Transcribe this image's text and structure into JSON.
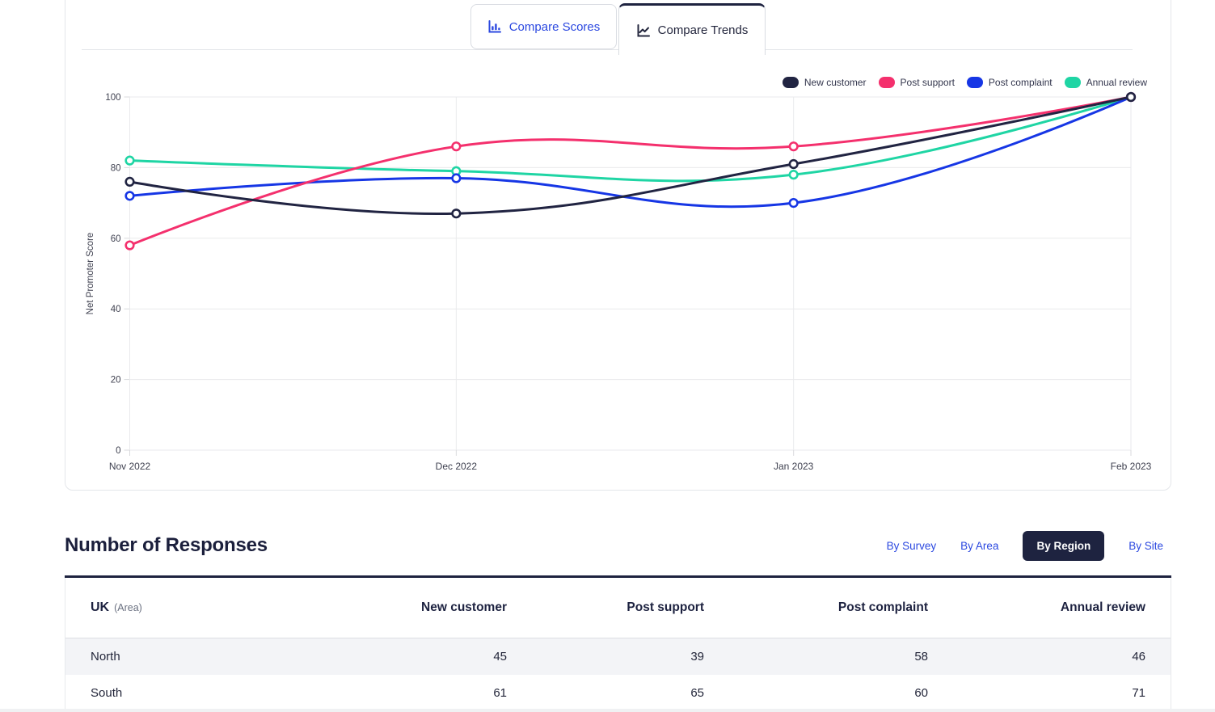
{
  "tabs": [
    {
      "label": "Compare Scores",
      "icon": "bar-chart-icon",
      "active": false
    },
    {
      "label": "Compare Trends",
      "icon": "line-chart-icon",
      "active": true
    }
  ],
  "chart_data": {
    "type": "line",
    "x": [
      "Nov 2022",
      "Dec 2022",
      "Jan 2023",
      "Feb 2023"
    ],
    "x_day_offsets": [
      0,
      30,
      61,
      92
    ],
    "ylabel": "Net Promoter Score",
    "ylim": [
      0,
      100
    ],
    "y_ticks": [
      0,
      20,
      40,
      60,
      80,
      100
    ],
    "grid": true,
    "legend_position": "top-right",
    "curve": "bezier-tension-0.4",
    "series": [
      {
        "name": "New customer",
        "color": "#212442",
        "values": [
          76,
          67,
          81,
          100
        ]
      },
      {
        "name": "Post support",
        "color": "#f4306d",
        "values": [
          58,
          86,
          86,
          100
        ]
      },
      {
        "name": "Post complaint",
        "color": "#1636e5",
        "values": [
          72,
          77,
          70,
          100
        ]
      },
      {
        "name": "Annual review",
        "color": "#1fd5a4",
        "values": [
          82,
          79,
          78,
          100
        ]
      }
    ]
  },
  "responses": {
    "title": "Number of Responses",
    "filters": [
      {
        "label": "By Survey",
        "active": false
      },
      {
        "label": "By Area",
        "active": false
      },
      {
        "label": "By Region",
        "active": true
      },
      {
        "label": "By Site",
        "active": false
      }
    ],
    "table": {
      "group_label": "UK",
      "group_sublabel": "(Area)",
      "columns": [
        "New customer",
        "Post support",
        "Post complaint",
        "Annual review"
      ],
      "rows": [
        {
          "label": "North",
          "values": [
            45,
            39,
            58,
            46
          ]
        },
        {
          "label": "South",
          "values": [
            61,
            65,
            60,
            71
          ]
        }
      ]
    }
  },
  "colors": {
    "accent_blue": "#2b48e0",
    "dark_navy": "#1e2340",
    "grid_line": "#e9eaec",
    "tick_text": "#3f4150",
    "row_stripe": "#f3f4f7"
  }
}
